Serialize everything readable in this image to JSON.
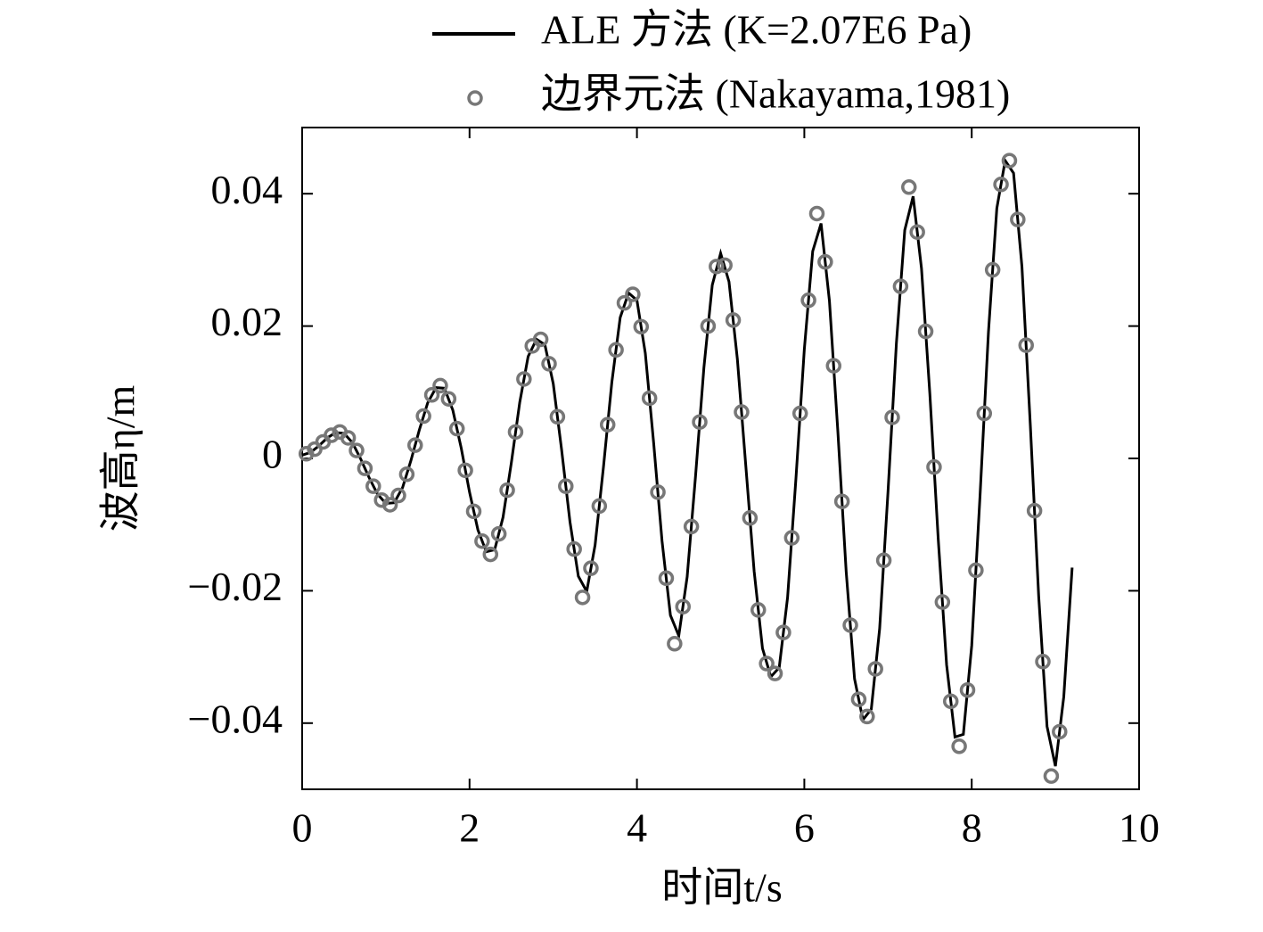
{
  "chart_data": {
    "type": "line",
    "xlabel": "时间t/s",
    "ylabel": "波高η/m",
    "xlim": [
      0,
      10
    ],
    "ylim": [
      -0.05,
      0.05
    ],
    "xticks": [
      0,
      2,
      4,
      6,
      8,
      10
    ],
    "yticks": [
      {
        "value": -0.04,
        "label": "−0.04"
      },
      {
        "value": -0.02,
        "label": "−0.02"
      },
      0,
      0.02,
      0.04
    ],
    "legend": "top",
    "series": [
      {
        "name": "ALE 方法 (K=2.07E6 Pa)",
        "color": "#000000",
        "kind": "line",
        "x": [
          0,
          0.1,
          0.2,
          0.3,
          0.4,
          0.5,
          0.6,
          0.7,
          0.8,
          0.9,
          1.0,
          1.1,
          1.2,
          1.3,
          1.4,
          1.5,
          1.6,
          1.7,
          1.8,
          1.9,
          2.0,
          2.1,
          2.2,
          2.3,
          2.4,
          2.5,
          2.6,
          2.7,
          2.8,
          2.9,
          3.0,
          3.1,
          3.2,
          3.3,
          3.4,
          3.5,
          3.6,
          3.7,
          3.8,
          3.9,
          4.0,
          4.1,
          4.2,
          4.3,
          4.4,
          4.5,
          4.6,
          4.7,
          4.8,
          4.9,
          5.0,
          5.1,
          5.2,
          5.3,
          5.4,
          5.5,
          5.6,
          5.7,
          5.8,
          5.9,
          6.0,
          6.1,
          6.2,
          6.3,
          6.4,
          6.5,
          6.6,
          6.7,
          6.8,
          6.9,
          7.0,
          7.1,
          7.2,
          7.3,
          7.4,
          7.5,
          7.6,
          7.7,
          7.8,
          7.9,
          8.0,
          8.1,
          8.2,
          8.3,
          8.4,
          8.5,
          8.6,
          8.7,
          8.8,
          8.9,
          9.0,
          9.1,
          9.2
        ],
        "values": [
          0.0005,
          0.0009,
          0.0019,
          0.0031,
          0.0039,
          0.0038,
          0.0024,
          -0.0001,
          -0.0029,
          -0.0054,
          -0.0068,
          -0.0067,
          -0.0044,
          -0.0003,
          0.0043,
          0.0084,
          0.0107,
          0.0106,
          0.0073,
          0.0016,
          -0.0051,
          -0.0108,
          -0.0141,
          -0.0138,
          -0.0089,
          -0.0006,
          0.0085,
          0.0154,
          0.018,
          0.0172,
          0.0113,
          0.0013,
          -0.0096,
          -0.0178,
          -0.0201,
          -0.0131,
          -0.0013,
          0.0115,
          0.0213,
          0.025,
          0.0239,
          0.0159,
          0.0023,
          -0.0125,
          -0.0237,
          -0.0268,
          -0.0179,
          -0.0027,
          0.0137,
          0.0262,
          0.031,
          0.0267,
          0.015,
          -0.001,
          -0.017,
          -0.0287,
          -0.033,
          -0.0316,
          -0.021,
          -0.003,
          0.0165,
          0.0313,
          0.0355,
          0.0238,
          0.0042,
          -0.0171,
          -0.0333,
          -0.0395,
          -0.0379,
          -0.0257,
          -0.005,
          0.0174,
          0.0345,
          0.0396,
          0.0287,
          0.0097,
          -0.0122,
          -0.0312,
          -0.0421,
          -0.0417,
          -0.0283,
          -0.0055,
          0.0191,
          0.0378,
          0.045,
          0.0431,
          0.029,
          0.0051,
          -0.0208,
          -0.0405,
          -0.0465,
          -0.036,
          -0.0165
        ]
      },
      {
        "name": "边界元法 (Nakayama,1981)",
        "color": "#777777",
        "kind": "scatter",
        "x": [
          0.05,
          0.15,
          0.25,
          0.35,
          0.45,
          0.55,
          0.65,
          0.75,
          0.85,
          0.95,
          1.05,
          1.15,
          1.25,
          1.35,
          1.45,
          1.55,
          1.65,
          1.75,
          1.85,
          1.95,
          2.05,
          2.15,
          2.25,
          2.35,
          2.45,
          2.55,
          2.65,
          2.75,
          2.85,
          2.95,
          3.05,
          3.15,
          3.25,
          3.35,
          3.45,
          3.55,
          3.65,
          3.75,
          3.85,
          3.95,
          4.05,
          4.15,
          4.25,
          4.35,
          4.45,
          4.55,
          4.65,
          4.75,
          4.85,
          4.95,
          5.05,
          5.15,
          5.25,
          5.35,
          5.45,
          5.55,
          5.65,
          5.75,
          5.85,
          5.95,
          6.05,
          6.15,
          6.25,
          6.35,
          6.45,
          6.55,
          6.65,
          6.75,
          6.85,
          6.95,
          7.05,
          7.15,
          7.25,
          7.35,
          7.45,
          7.55,
          7.65,
          7.75,
          7.85,
          7.95,
          8.05,
          8.15,
          8.25,
          8.35,
          8.45,
          8.55,
          8.65,
          8.75,
          8.85,
          8.95,
          9.05
        ],
        "values": [
          0.0007,
          0.0014,
          0.0025,
          0.0035,
          0.004,
          0.0031,
          0.0012,
          -0.0015,
          -0.0042,
          -0.0063,
          -0.007,
          -0.0056,
          -0.0024,
          0.002,
          0.0064,
          0.0096,
          0.011,
          0.009,
          0.0045,
          -0.0018,
          -0.008,
          -0.0125,
          -0.0145,
          -0.0114,
          -0.0048,
          0.004,
          0.012,
          0.017,
          0.018,
          0.0143,
          0.0063,
          -0.0042,
          -0.0137,
          -0.021,
          -0.0166,
          -0.0072,
          0.0051,
          0.0164,
          0.0235,
          0.0248,
          0.0199,
          0.0091,
          -0.0051,
          -0.0181,
          -0.028,
          -0.0224,
          -0.0103,
          0.0055,
          0.02,
          0.029,
          0.0292,
          0.0209,
          0.007,
          -0.009,
          -0.0229,
          -0.031,
          -0.0325,
          -0.0263,
          -0.012,
          0.0068,
          0.0239,
          0.037,
          0.0297,
          0.014,
          -0.0065,
          -0.0252,
          -0.0364,
          -0.039,
          -0.0318,
          -0.0154,
          0.0062,
          0.026,
          0.041,
          0.0342,
          0.0192,
          -0.0013,
          -0.0217,
          -0.0367,
          -0.0435,
          -0.035,
          -0.0169,
          0.0068,
          0.0285,
          0.0414,
          0.045,
          0.0361,
          0.0171,
          -0.0079,
          -0.0307,
          -0.048,
          -0.0413
        ]
      }
    ]
  }
}
